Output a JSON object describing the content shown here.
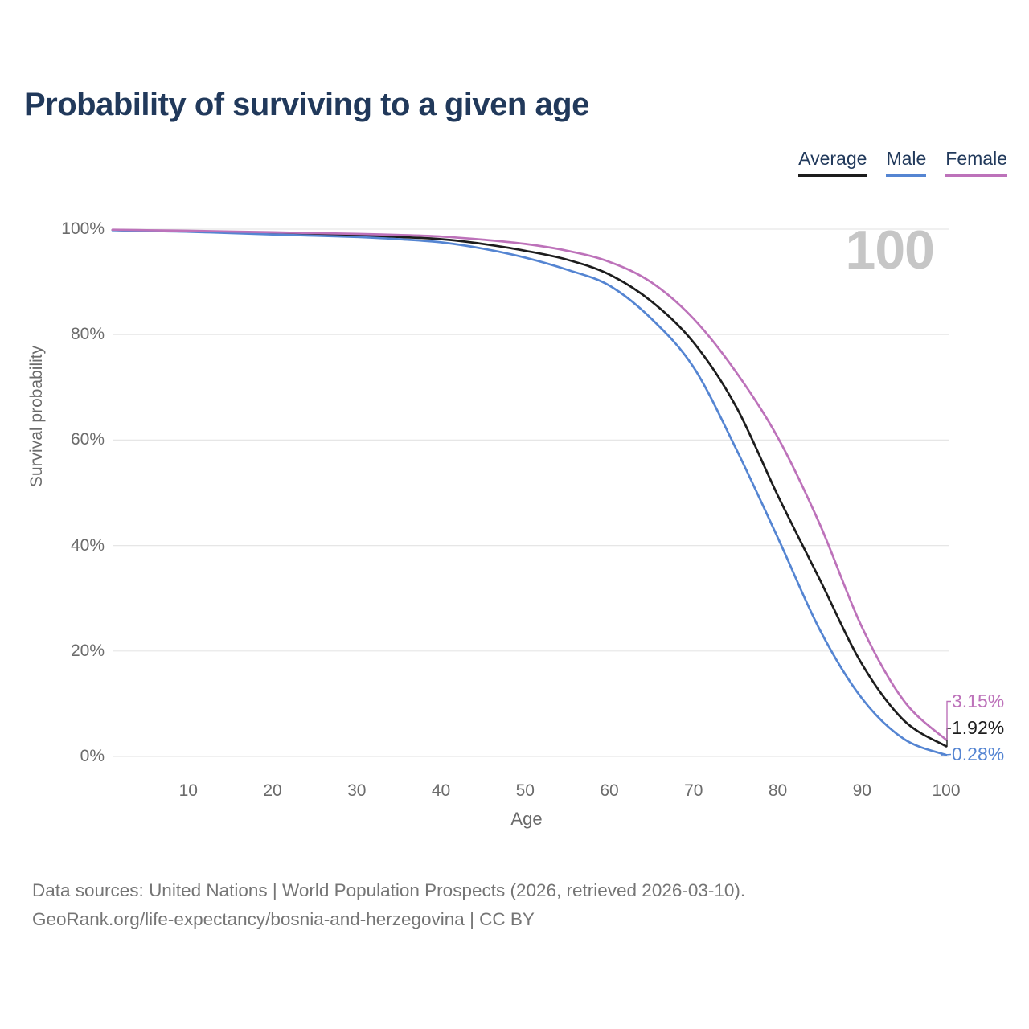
{
  "page": {
    "title": "Probability of surviving to a given age",
    "footer_line1": "Data sources: United Nations | World Population Prospects (2026, retrieved 2026-03-10).",
    "footer_line2": "GeoRank.org/life-expectancy/bosnia-and-herzegovina | CC BY",
    "watermark": "100"
  },
  "legend": [
    {
      "label": "Average",
      "color": "#1d1d1d"
    },
    {
      "label": "Male",
      "color": "#5585d2"
    },
    {
      "label": "Female",
      "color": "#bd72ba"
    }
  ],
  "colors": {
    "title": "#21395b",
    "axis_text": "#6b6b6b",
    "gridline": "#e6e6e6",
    "watermark": "#c6c6c6",
    "footer": "#757575"
  },
  "chart_data": {
    "type": "line",
    "title": "Probability of surviving to a given age",
    "xlabel": "Age",
    "ylabel": "Survival probability",
    "xlim": [
      1,
      100
    ],
    "ylim": [
      0,
      100
    ],
    "grid": "horizontal-only",
    "legend_position": "top-right",
    "x_ticks": [
      10,
      20,
      30,
      40,
      50,
      60,
      70,
      80,
      90,
      100
    ],
    "y_ticks": [
      0,
      20,
      40,
      60,
      80,
      100
    ],
    "y_tick_suffix": "%",
    "x": [
      1,
      5,
      10,
      15,
      20,
      25,
      30,
      35,
      40,
      45,
      50,
      55,
      60,
      65,
      70,
      75,
      80,
      85,
      90,
      95,
      100
    ],
    "series": [
      {
        "name": "Average",
        "color": "#1d1d1d",
        "end_label": "1.92%",
        "values": [
          99.85,
          99.7,
          99.6,
          99.4,
          99.2,
          99.0,
          98.8,
          98.5,
          98.1,
          97.2,
          95.9,
          94.2,
          91.4,
          86.3,
          78.5,
          66.5,
          49.5,
          33.5,
          17.5,
          6.8,
          1.92
        ]
      },
      {
        "name": "Male",
        "color": "#5585d2",
        "end_label": "0.28%",
        "values": [
          99.8,
          99.65,
          99.5,
          99.25,
          99.0,
          98.75,
          98.5,
          98.1,
          97.5,
          96.3,
          94.6,
          92.3,
          89.3,
          83.0,
          73.8,
          58.5,
          41.5,
          24.0,
          11.0,
          3.3,
          0.28
        ]
      },
      {
        "name": "Female",
        "color": "#bd72ba",
        "end_label": "3.15%",
        "values": [
          99.9,
          99.8,
          99.7,
          99.55,
          99.4,
          99.25,
          99.1,
          98.9,
          98.6,
          98.0,
          97.2,
          95.9,
          93.8,
          89.9,
          83.0,
          73.0,
          60.5,
          44.0,
          24.5,
          10.5,
          3.15
        ]
      }
    ]
  }
}
